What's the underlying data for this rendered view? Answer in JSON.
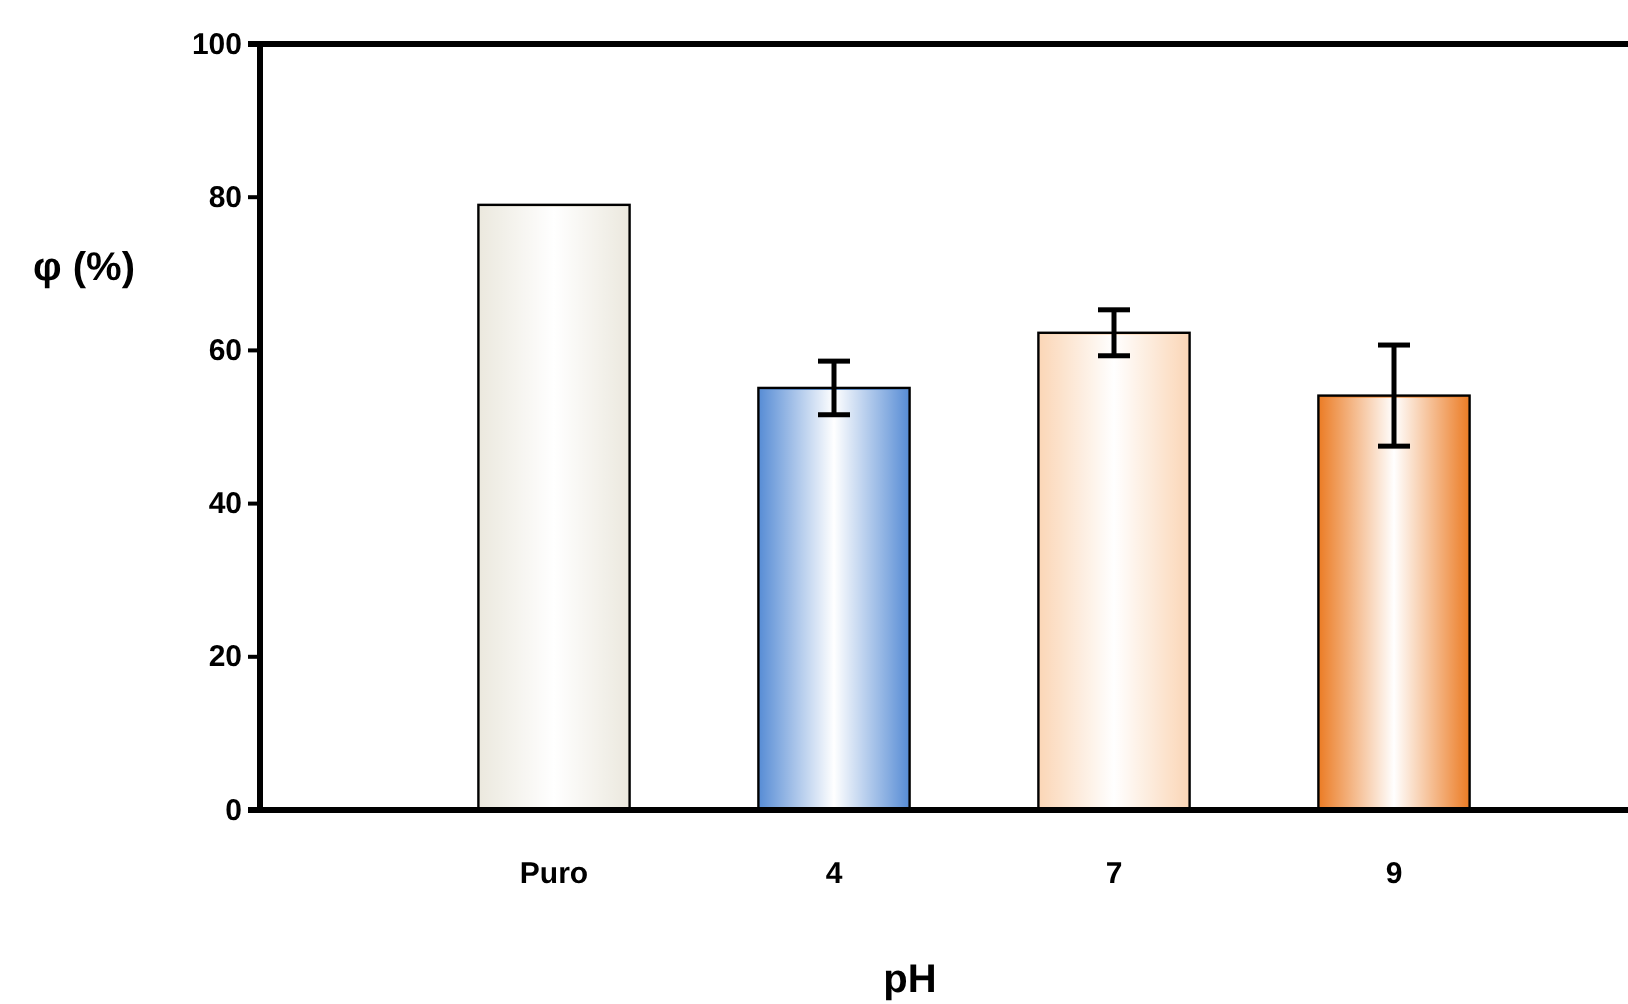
{
  "chart_data": {
    "type": "bar",
    "xlabel": "pH",
    "ylabel": "φ (%)",
    "categories": [
      "Puro",
      "4",
      "7",
      "9"
    ],
    "values": [
      79,
      55.1,
      62.3,
      54.1
    ],
    "errors": [
      null,
      3.5,
      3,
      6.6
    ],
    "colors": [
      "#ece9df",
      "#5b8fd6",
      "#fbd7b8",
      "#ec7f2a"
    ],
    "ylim": [
      0,
      100
    ],
    "yticks": [
      0,
      20,
      40,
      60,
      80,
      100
    ],
    "grid": false
  }
}
